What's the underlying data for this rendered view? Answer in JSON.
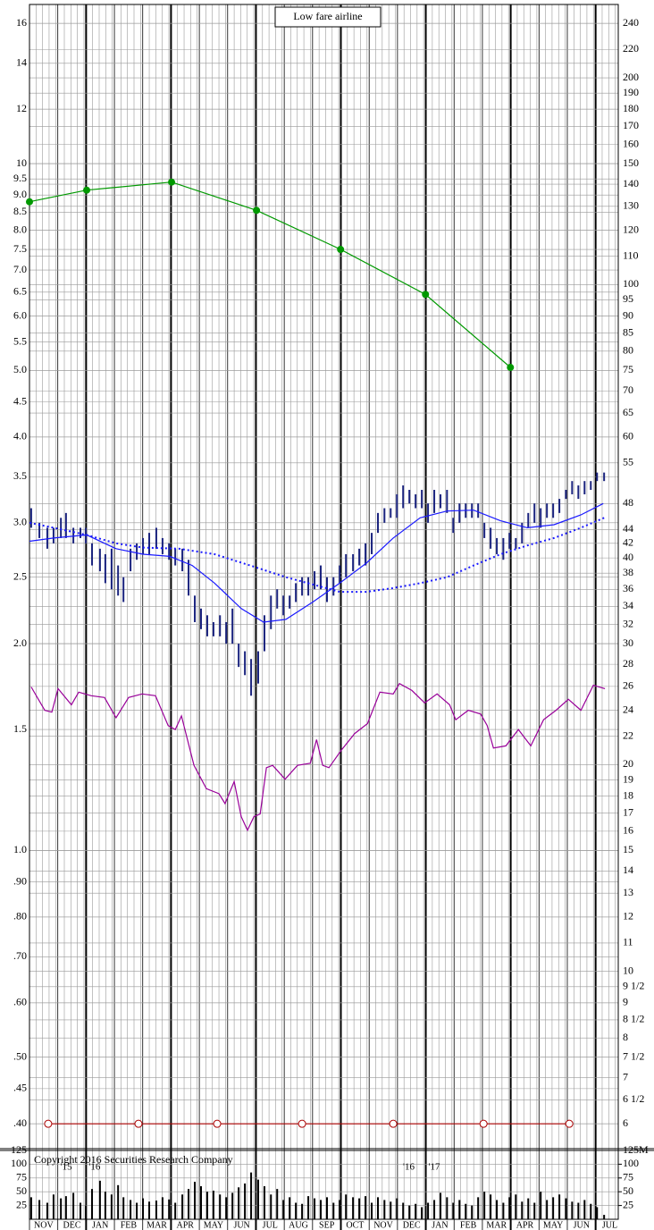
{
  "chart_data": {
    "type": "ohlc",
    "title": "Low fare airline",
    "annotation": "Copyright 2016 Securities Research Company",
    "categories": [
      "NOV",
      "DEC",
      "JAN",
      "FEB",
      "MAR",
      "APR",
      "MAY",
      "JUN",
      "JUL",
      "AUG",
      "SEP",
      "OCT",
      "NOV",
      "DEC",
      "JAN",
      "FEB",
      "MAR",
      "APR",
      "MAY",
      "JUN",
      "JUL"
    ],
    "year_labels": [
      {
        "x": 1.3,
        "label": "'15"
      },
      {
        "x": 2.3,
        "label": "'16"
      },
      {
        "x": 13.4,
        "label": "'16"
      },
      {
        "x": 14.3,
        "label": "'17"
      }
    ],
    "xlim": [
      0,
      20.8
    ],
    "log_scale": true,
    "grid": true,
    "ylim": [
      0.368,
      17.05
    ],
    "y2lim": [
      5.52,
      255.75
    ],
    "yticks": [
      16,
      14,
      12,
      10,
      9.5,
      {
        "value": 9,
        "label": "9.0"
      },
      8.5,
      {
        "value": 8,
        "label": "8.0"
      },
      7.5,
      {
        "value": 7,
        "label": "7.0"
      },
      6.5,
      {
        "value": 6,
        "label": "6.0"
      },
      5.5,
      {
        "value": 5,
        "label": "5.0"
      },
      4.5,
      {
        "value": 4,
        "label": "4.0"
      },
      3.5,
      {
        "value": 3,
        "label": "3.0"
      },
      2.5,
      {
        "value": 2,
        "label": "2.0"
      },
      1.5,
      {
        "value": 1,
        "label": "1.0"
      },
      {
        "value": 0.9,
        "label": ".90"
      },
      {
        "value": 0.8,
        "label": ".80"
      },
      {
        "value": 0.7,
        "label": ".70"
      },
      {
        "value": 0.6,
        "label": ".60"
      },
      {
        "value": 0.5,
        "label": ".50"
      },
      {
        "value": 0.45,
        "label": ".45"
      },
      {
        "value": 0.4,
        "label": ".40"
      }
    ],
    "y2ticks": [
      240,
      220,
      200,
      190,
      180,
      170,
      160,
      150,
      140,
      130,
      120,
      110,
      100,
      95,
      90,
      85,
      80,
      75,
      70,
      65,
      60,
      55,
      48,
      44,
      42,
      40,
      38,
      36,
      34,
      32,
      30,
      28,
      26,
      24,
      22,
      20,
      19,
      18,
      17,
      16,
      15,
      14,
      13,
      12,
      11,
      10,
      {
        "value": 9.5,
        "label": "9 1/2"
      },
      9,
      {
        "value": 8.5,
        "label": "8 1/2"
      },
      8,
      {
        "value": 7.5,
        "label": "7 1/2"
      },
      7,
      {
        "value": 6.5,
        "label": "6 1/2"
      },
      6
    ],
    "bar_color": "#1a237e",
    "bars": [
      {
        "x": 0.06,
        "high": 3.15,
        "low": 2.95,
        "volume": 40
      },
      {
        "x": 0.35,
        "high": 3.0,
        "low": 2.85,
        "volume": 35
      },
      {
        "x": 0.63,
        "high": 2.95,
        "low": 2.75,
        "volume": 30
      },
      {
        "x": 0.85,
        "high": 2.95,
        "low": 2.8,
        "volume": 45
      },
      {
        "x": 1.11,
        "high": 3.05,
        "low": 2.85,
        "volume": 38
      },
      {
        "x": 1.29,
        "high": 3.1,
        "low": 2.85,
        "volume": 42
      },
      {
        "x": 1.55,
        "high": 2.95,
        "low": 2.8,
        "volume": 48
      },
      {
        "x": 1.8,
        "high": 2.95,
        "low": 2.85,
        "volume": 30
      },
      {
        "x": 1.99,
        "high": 2.95,
        "low": 2.8,
        "volume": 25
      },
      {
        "x": 2.21,
        "high": 2.8,
        "low": 2.6,
        "volume": 55
      },
      {
        "x": 2.49,
        "high": 2.75,
        "low": 2.55,
        "volume": 70
      },
      {
        "x": 2.68,
        "high": 2.7,
        "low": 2.45,
        "volume": 50
      },
      {
        "x": 2.9,
        "high": 2.75,
        "low": 2.4,
        "volume": 45
      },
      {
        "x": 3.13,
        "high": 2.6,
        "low": 2.35,
        "volume": 62
      },
      {
        "x": 3.32,
        "high": 2.5,
        "low": 2.3,
        "volume": 40
      },
      {
        "x": 3.57,
        "high": 2.75,
        "low": 2.55,
        "volume": 35
      },
      {
        "x": 3.79,
        "high": 2.8,
        "low": 2.65,
        "volume": 30
      },
      {
        "x": 4.01,
        "high": 2.85,
        "low": 2.7,
        "volume": 38
      },
      {
        "x": 4.23,
        "high": 2.9,
        "low": 2.7,
        "volume": 32
      },
      {
        "x": 4.48,
        "high": 2.95,
        "low": 2.75,
        "volume": 34
      },
      {
        "x": 4.7,
        "high": 2.85,
        "low": 2.7,
        "volume": 40
      },
      {
        "x": 4.93,
        "high": 2.8,
        "low": 2.65,
        "volume": 36
      },
      {
        "x": 5.15,
        "high": 2.75,
        "low": 2.6,
        "volume": 30
      },
      {
        "x": 5.4,
        "high": 2.75,
        "low": 2.55,
        "volume": 45
      },
      {
        "x": 5.62,
        "high": 2.65,
        "low": 2.35,
        "volume": 55
      },
      {
        "x": 5.84,
        "high": 2.35,
        "low": 2.15,
        "volume": 68
      },
      {
        "x": 6.06,
        "high": 2.25,
        "low": 2.1,
        "volume": 60
      },
      {
        "x": 6.28,
        "high": 2.2,
        "low": 2.05,
        "volume": 50
      },
      {
        "x": 6.5,
        "high": 2.15,
        "low": 2.05,
        "volume": 52
      },
      {
        "x": 6.73,
        "high": 2.2,
        "low": 2.05,
        "volume": 45
      },
      {
        "x": 6.95,
        "high": 2.15,
        "low": 2.0,
        "volume": 40
      },
      {
        "x": 7.17,
        "high": 2.25,
        "low": 2.0,
        "volume": 48
      },
      {
        "x": 7.39,
        "high": 2.0,
        "low": 1.85,
        "volume": 58
      },
      {
        "x": 7.61,
        "high": 1.95,
        "low": 1.8,
        "volume": 65
      },
      {
        "x": 7.83,
        "high": 1.9,
        "low": 1.68,
        "volume": 85
      },
      {
        "x": 8.08,
        "high": 1.95,
        "low": 1.75,
        "volume": 72
      },
      {
        "x": 8.3,
        "high": 2.2,
        "low": 1.95,
        "volume": 60
      },
      {
        "x": 8.53,
        "high": 2.35,
        "low": 2.1,
        "volume": 45
      },
      {
        "x": 8.75,
        "high": 2.4,
        "low": 2.25,
        "volume": 55
      },
      {
        "x": 8.97,
        "high": 2.35,
        "low": 2.2,
        "volume": 35
      },
      {
        "x": 9.19,
        "high": 2.35,
        "low": 2.25,
        "volume": 40
      },
      {
        "x": 9.41,
        "high": 2.45,
        "low": 2.3,
        "volume": 30
      },
      {
        "x": 9.63,
        "high": 2.5,
        "low": 2.35,
        "volume": 28
      },
      {
        "x": 9.85,
        "high": 2.5,
        "low": 2.35,
        "volume": 42
      },
      {
        "x": 10.07,
        "high": 2.55,
        "low": 2.4,
        "volume": 38
      },
      {
        "x": 10.29,
        "high": 2.6,
        "low": 2.4,
        "volume": 35
      },
      {
        "x": 10.51,
        "high": 2.5,
        "low": 2.3,
        "volume": 40
      },
      {
        "x": 10.74,
        "high": 2.5,
        "low": 2.35,
        "volume": 30
      },
      {
        "x": 10.96,
        "high": 2.6,
        "low": 2.45,
        "volume": 35
      },
      {
        "x": 11.18,
        "high": 2.7,
        "low": 2.5,
        "volume": 45
      },
      {
        "x": 11.43,
        "high": 2.7,
        "low": 2.55,
        "volume": 40
      },
      {
        "x": 11.65,
        "high": 2.75,
        "low": 2.6,
        "volume": 38
      },
      {
        "x": 11.87,
        "high": 2.8,
        "low": 2.6,
        "volume": 42
      },
      {
        "x": 12.09,
        "high": 2.9,
        "low": 2.7,
        "volume": 30
      },
      {
        "x": 12.31,
        "high": 3.1,
        "low": 2.9,
        "volume": 40
      },
      {
        "x": 12.54,
        "high": 3.15,
        "low": 3.0,
        "volume": 35
      },
      {
        "x": 12.76,
        "high": 3.15,
        "low": 3.05,
        "volume": 32
      },
      {
        "x": 12.98,
        "high": 3.3,
        "low": 3.05,
        "volume": 38
      },
      {
        "x": 13.2,
        "high": 3.4,
        "low": 3.15,
        "volume": 30
      },
      {
        "x": 13.42,
        "high": 3.35,
        "low": 3.2,
        "volume": 25
      },
      {
        "x": 13.64,
        "high": 3.3,
        "low": 3.15,
        "volume": 28
      },
      {
        "x": 13.86,
        "high": 3.35,
        "low": 3.15,
        "volume": 22
      },
      {
        "x": 14.08,
        "high": 3.2,
        "low": 3.0,
        "volume": 30
      },
      {
        "x": 14.3,
        "high": 3.35,
        "low": 3.1,
        "volume": 35
      },
      {
        "x": 14.52,
        "high": 3.3,
        "low": 3.15,
        "volume": 48
      },
      {
        "x": 14.75,
        "high": 3.35,
        "low": 3.1,
        "volume": 40
      },
      {
        "x": 14.97,
        "high": 3.05,
        "low": 2.9,
        "volume": 30
      },
      {
        "x": 15.19,
        "high": 3.2,
        "low": 3.0,
        "volume": 35
      },
      {
        "x": 15.41,
        "high": 3.2,
        "low": 3.05,
        "volume": 28
      },
      {
        "x": 15.63,
        "high": 3.2,
        "low": 3.05,
        "volume": 25
      },
      {
        "x": 15.85,
        "high": 3.2,
        "low": 3.05,
        "volume": 40
      },
      {
        "x": 16.07,
        "high": 3.0,
        "low": 2.85,
        "volume": 50
      },
      {
        "x": 16.29,
        "high": 2.95,
        "low": 2.75,
        "volume": 45
      },
      {
        "x": 16.51,
        "high": 2.85,
        "low": 2.7,
        "volume": 35
      },
      {
        "x": 16.74,
        "high": 2.85,
        "low": 2.65,
        "volume": 30
      },
      {
        "x": 16.96,
        "high": 2.9,
        "low": 2.75,
        "volume": 40
      },
      {
        "x": 17.18,
        "high": 2.85,
        "low": 2.75,
        "volume": 45
      },
      {
        "x": 17.4,
        "high": 3.0,
        "low": 2.8,
        "volume": 32
      },
      {
        "x": 17.62,
        "high": 3.1,
        "low": 2.95,
        "volume": 38
      },
      {
        "x": 17.84,
        "high": 3.2,
        "low": 3.0,
        "volume": 30
      },
      {
        "x": 18.06,
        "high": 3.15,
        "low": 2.95,
        "volume": 50
      },
      {
        "x": 18.28,
        "high": 3.2,
        "low": 3.05,
        "volume": 35
      },
      {
        "x": 18.5,
        "high": 3.2,
        "low": 3.05,
        "volume": 40
      },
      {
        "x": 18.72,
        "high": 3.25,
        "low": 3.1,
        "volume": 45
      },
      {
        "x": 18.95,
        "high": 3.35,
        "low": 3.25,
        "volume": 38
      },
      {
        "x": 19.17,
        "high": 3.45,
        "low": 3.3,
        "volume": 32
      },
      {
        "x": 19.39,
        "high": 3.4,
        "low": 3.25,
        "volume": 30
      },
      {
        "x": 19.61,
        "high": 3.45,
        "low": 3.3,
        "volume": 35
      },
      {
        "x": 19.83,
        "high": 3.45,
        "low": 3.35,
        "volume": 28
      },
      {
        "x": 20.05,
        "high": 3.55,
        "low": 3.45,
        "volume": 22
      },
      {
        "x": 20.3,
        "high": 3.55,
        "low": 3.45,
        "volume": 8
      }
    ],
    "lines": [
      {
        "color": "#1a1aff",
        "dash": false,
        "marker": "none",
        "x": [
          0,
          0.85,
          2.02,
          3.06,
          4.01,
          4.96,
          5.75,
          6.54,
          7.48,
          8.27,
          9.06,
          10.01,
          10.96,
          11.9,
          12.85,
          13.8,
          14.75,
          15.69,
          16.64,
          17.59,
          18.53,
          19.48,
          20.27
        ],
        "values": [
          2.82,
          2.85,
          2.88,
          2.75,
          2.7,
          2.68,
          2.6,
          2.45,
          2.25,
          2.15,
          2.17,
          2.3,
          2.45,
          2.62,
          2.85,
          3.05,
          3.12,
          3.13,
          3.02,
          2.95,
          2.98,
          3.08,
          3.2
        ]
      },
      {
        "color": "#1a1aff",
        "dash": true,
        "marker": "none",
        "x": [
          0,
          0.85,
          2.02,
          3.06,
          4.01,
          5.27,
          6.54,
          7.8,
          9.06,
          10.01,
          10.96,
          11.9,
          12.85,
          13.8,
          14.75,
          15.69,
          16.64,
          17.59,
          18.53,
          19.48,
          20.3
        ],
        "values": [
          3.0,
          2.95,
          2.88,
          2.8,
          2.76,
          2.75,
          2.7,
          2.6,
          2.5,
          2.44,
          2.38,
          2.38,
          2.41,
          2.45,
          2.5,
          2.6,
          2.7,
          2.78,
          2.85,
          2.95,
          3.05
        ]
      },
      {
        "color": "#990099",
        "dash": false,
        "marker": "none",
        "x": [
          0.06,
          0.54,
          0.79,
          1.01,
          1.48,
          1.74,
          2.18,
          2.65,
          3.06,
          3.5,
          3.98,
          4.45,
          4.9,
          5.15,
          5.37,
          5.81,
          6.25,
          6.69,
          6.91,
          7.23,
          7.48,
          7.7,
          7.93,
          8.15,
          8.37,
          8.59,
          9.03,
          9.47,
          9.92,
          10.14,
          10.36,
          10.58,
          11.02,
          11.49,
          11.94,
          12.38,
          12.85,
          13.07,
          13.51,
          13.96,
          14.4,
          14.84,
          15.06,
          15.5,
          15.94,
          16.17,
          16.39,
          16.83,
          17.27,
          17.71,
          18.16,
          18.6,
          19.04,
          19.48,
          19.92,
          20.33
        ],
        "values": [
          1.73,
          1.6,
          1.59,
          1.72,
          1.63,
          1.7,
          1.68,
          1.67,
          1.56,
          1.67,
          1.69,
          1.68,
          1.52,
          1.5,
          1.57,
          1.33,
          1.23,
          1.21,
          1.17,
          1.26,
          1.12,
          1.07,
          1.12,
          1.13,
          1.32,
          1.33,
          1.27,
          1.33,
          1.34,
          1.45,
          1.33,
          1.32,
          1.4,
          1.48,
          1.53,
          1.7,
          1.69,
          1.75,
          1.71,
          1.64,
          1.69,
          1.63,
          1.55,
          1.6,
          1.58,
          1.52,
          1.41,
          1.42,
          1.5,
          1.42,
          1.55,
          1.6,
          1.66,
          1.6,
          1.74,
          1.72
        ]
      },
      {
        "color": "#009900",
        "dash": false,
        "marker": "dot",
        "x": [
          0,
          2.02,
          5.02,
          8.02,
          10.99,
          13.99,
          16.99
        ],
        "values": [
          8.8,
          9.15,
          9.4,
          8.55,
          7.5,
          6.45,
          5.05
        ]
      },
      {
        "color": "#aa0000",
        "dash": false,
        "marker": "circle",
        "x": [
          0.66,
          3.85,
          6.63,
          9.63,
          12.85,
          16.04,
          19.07
        ],
        "values": [
          0.4,
          0.4,
          0.4,
          0.4,
          0.4,
          0.4,
          0.4
        ]
      }
    ],
    "volume": {
      "ylim": [
        0,
        125
      ],
      "yticks": [
        25,
        50,
        75,
        100,
        125
      ],
      "y2ticks": [
        25,
        50,
        75,
        100,
        {
          "value": 125,
          "label": "125M"
        }
      ]
    }
  }
}
